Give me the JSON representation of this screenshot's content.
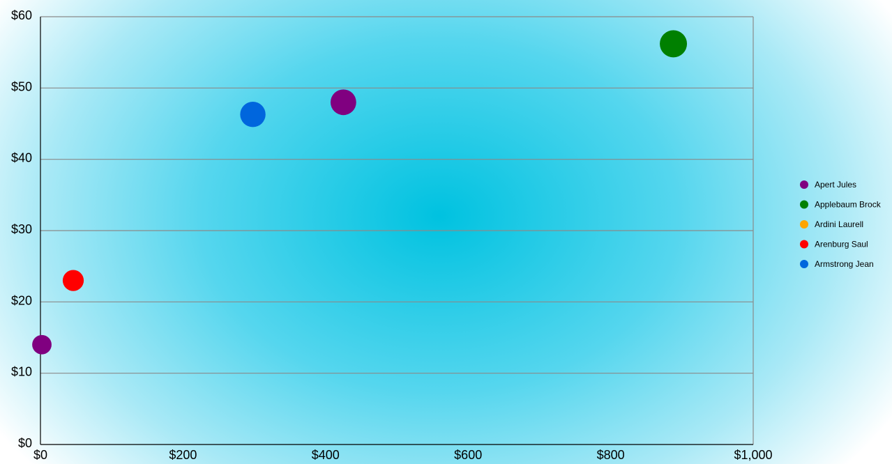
{
  "chart_data": {
    "type": "scatter",
    "title": "",
    "xlabel": "",
    "ylabel": "",
    "xlim": [
      0,
      1000
    ],
    "ylim": [
      0,
      60
    ],
    "x_ticks": [
      "$0",
      "$200",
      "$400",
      "$600",
      "$800",
      "$1,000"
    ],
    "x_tick_values": [
      0,
      200,
      400,
      600,
      800,
      1000
    ],
    "y_ticks": [
      "$0",
      "$10",
      "$20",
      "$30",
      "$40",
      "$50",
      "$60"
    ],
    "y_tick_values": [
      0,
      10,
      20,
      30,
      40,
      50,
      60
    ],
    "grid": "horizontal",
    "legend_position": "right",
    "series": [
      {
        "name": "Apert Jules",
        "color": "#800080",
        "points": [
          {
            "x": 2,
            "y": 14
          },
          {
            "x": 425,
            "y": 48
          }
        ]
      },
      {
        "name": "Applebaum Brock",
        "color": "#008000",
        "points": [
          {
            "x": 888,
            "y": 56.2
          }
        ]
      },
      {
        "name": "Ardini Laurell",
        "color": "#ffa500",
        "points": []
      },
      {
        "name": "Arenburg Saul",
        "color": "#ff0000",
        "points": [
          {
            "x": 46,
            "y": 23
          }
        ]
      },
      {
        "name": "Armstrong Jean",
        "color": "#0066dd",
        "points": [
          {
            "x": 298,
            "y": 46.3
          }
        ]
      }
    ]
  }
}
